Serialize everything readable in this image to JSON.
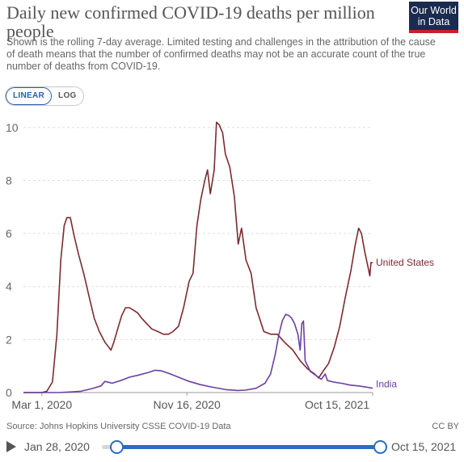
{
  "header": {
    "title": "Daily new confirmed COVID-19 deaths per million people",
    "subtitle": "Shown is the rolling 7-day average. Limited testing and challenges in the attribution of the cause of death means that the number of confirmed deaths may not be an accurate count of the true number of deaths from COVID-19.",
    "logo_line1": "Our World",
    "logo_line2": "in Data"
  },
  "scale_toggle": {
    "linear_label": "LINEAR",
    "log_label": "LOG",
    "selected": "LINEAR"
  },
  "footer": {
    "source": "Source: Johns Hopkins University CSSE COVID-19 Data",
    "license": "CC BY"
  },
  "timeline": {
    "start_label": "Jan 28, 2020",
    "end_label": "Oct 15, 2021"
  },
  "colors": {
    "united_states": "#7d2a2f",
    "india": "#6b3fa0",
    "grid": "#dddddd",
    "accent": "#2d6bc7"
  },
  "chart_data": {
    "type": "line",
    "title": "Daily new confirmed COVID-19 deaths per million people",
    "xlabel": "",
    "ylabel": "",
    "x_ticks": [
      "Mar 1, 2020",
      "Nov 16, 2020",
      "Oct 15, 2021"
    ],
    "y_ticks": [
      0,
      2,
      4,
      6,
      8,
      10
    ],
    "xlim": [
      "2020-01-28",
      "2021-10-15"
    ],
    "ylim": [
      0,
      10.3
    ],
    "grid": "horizontal dashed",
    "series": [
      {
        "name": "United States",
        "points": [
          [
            "2020-01-28",
            0
          ],
          [
            "2020-03-01",
            0
          ],
          [
            "2020-03-10",
            0.05
          ],
          [
            "2020-03-20",
            0.4
          ],
          [
            "2020-03-28",
            2.2
          ],
          [
            "2020-04-04",
            5.0
          ],
          [
            "2020-04-10",
            6.3
          ],
          [
            "2020-04-15",
            6.6
          ],
          [
            "2020-04-21",
            6.6
          ],
          [
            "2020-04-28",
            5.9
          ],
          [
            "2020-05-06",
            5.2
          ],
          [
            "2020-05-15",
            4.5
          ],
          [
            "2020-05-25",
            3.6
          ],
          [
            "2020-06-03",
            2.8
          ],
          [
            "2020-06-12",
            2.3
          ],
          [
            "2020-06-22",
            1.9
          ],
          [
            "2020-07-03",
            1.6
          ],
          [
            "2020-07-08",
            1.9
          ],
          [
            "2020-07-15",
            2.4
          ],
          [
            "2020-07-22",
            2.9
          ],
          [
            "2020-07-29",
            3.2
          ],
          [
            "2020-08-05",
            3.2
          ],
          [
            "2020-08-13",
            3.1
          ],
          [
            "2020-08-20",
            3.0
          ],
          [
            "2020-08-27",
            2.8
          ],
          [
            "2020-09-05",
            2.6
          ],
          [
            "2020-09-14",
            2.4
          ],
          [
            "2020-09-25",
            2.3
          ],
          [
            "2020-10-05",
            2.2
          ],
          [
            "2020-10-14",
            2.2
          ],
          [
            "2020-10-22",
            2.3
          ],
          [
            "2020-11-01",
            2.5
          ],
          [
            "2020-11-10",
            3.2
          ],
          [
            "2020-11-20",
            4.2
          ],
          [
            "2020-11-27",
            4.5
          ],
          [
            "2020-12-04",
            6.3
          ],
          [
            "2020-12-11",
            7.3
          ],
          [
            "2020-12-18",
            8.0
          ],
          [
            "2020-12-23",
            8.4
          ],
          [
            "2020-12-28",
            7.5
          ],
          [
            "2021-01-04",
            8.4
          ],
          [
            "2021-01-08",
            10.2
          ],
          [
            "2021-01-13",
            10.1
          ],
          [
            "2021-01-19",
            9.8
          ],
          [
            "2021-01-24",
            9.0
          ],
          [
            "2021-02-01",
            8.5
          ],
          [
            "2021-02-09",
            7.4
          ],
          [
            "2021-02-16",
            5.6
          ],
          [
            "2021-02-22",
            6.2
          ],
          [
            "2021-03-02",
            5.0
          ],
          [
            "2021-03-11",
            4.5
          ],
          [
            "2021-03-20",
            3.2
          ],
          [
            "2021-04-03",
            2.3
          ],
          [
            "2021-04-15",
            2.2
          ],
          [
            "2021-04-27",
            2.2
          ],
          [
            "2021-05-10",
            1.9
          ],
          [
            "2021-05-25",
            1.6
          ],
          [
            "2021-06-07",
            1.2
          ],
          [
            "2021-06-20",
            0.9
          ],
          [
            "2021-07-03",
            0.7
          ],
          [
            "2021-07-10",
            0.55
          ],
          [
            "2021-07-18",
            0.8
          ],
          [
            "2021-07-28",
            1.1
          ],
          [
            "2021-08-07",
            1.7
          ],
          [
            "2021-08-17",
            2.5
          ],
          [
            "2021-08-27",
            3.6
          ],
          [
            "2021-09-06",
            4.6
          ],
          [
            "2021-09-14",
            5.6
          ],
          [
            "2021-09-20",
            6.2
          ],
          [
            "2021-09-25",
            6.0
          ],
          [
            "2021-10-01",
            5.3
          ],
          [
            "2021-10-07",
            4.7
          ],
          [
            "2021-10-10",
            4.4
          ],
          [
            "2021-10-12",
            4.9
          ],
          [
            "2021-10-15",
            4.9
          ]
        ]
      },
      {
        "name": "India",
        "points": [
          [
            "2020-01-28",
            0
          ],
          [
            "2020-03-01",
            0
          ],
          [
            "2020-04-01",
            0
          ],
          [
            "2020-04-20",
            0.02
          ],
          [
            "2020-05-10",
            0.05
          ],
          [
            "2020-05-30",
            0.15
          ],
          [
            "2020-06-15",
            0.25
          ],
          [
            "2020-06-22",
            0.42
          ],
          [
            "2020-07-05",
            0.35
          ],
          [
            "2020-07-20",
            0.45
          ],
          [
            "2020-08-05",
            0.58
          ],
          [
            "2020-08-22",
            0.66
          ],
          [
            "2020-09-08",
            0.76
          ],
          [
            "2020-09-20",
            0.84
          ],
          [
            "2020-10-01",
            0.82
          ],
          [
            "2020-10-15",
            0.72
          ],
          [
            "2020-11-01",
            0.58
          ],
          [
            "2020-11-20",
            0.42
          ],
          [
            "2020-12-10",
            0.3
          ],
          [
            "2021-01-01",
            0.2
          ],
          [
            "2021-01-25",
            0.11
          ],
          [
            "2021-02-15",
            0.08
          ],
          [
            "2021-03-01",
            0.09
          ],
          [
            "2021-03-20",
            0.16
          ],
          [
            "2021-04-05",
            0.35
          ],
          [
            "2021-04-15",
            0.7
          ],
          [
            "2021-04-23",
            1.4
          ],
          [
            "2021-04-30",
            2.2
          ],
          [
            "2021-05-06",
            2.7
          ],
          [
            "2021-05-12",
            2.95
          ],
          [
            "2021-05-18",
            2.9
          ],
          [
            "2021-05-23",
            2.8
          ],
          [
            "2021-05-28",
            2.6
          ],
          [
            "2021-06-03",
            2.2
          ],
          [
            "2021-06-07",
            1.6
          ],
          [
            "2021-06-10",
            2.6
          ],
          [
            "2021-06-13",
            2.7
          ],
          [
            "2021-06-16",
            1.2
          ],
          [
            "2021-06-25",
            0.8
          ],
          [
            "2021-07-05",
            0.65
          ],
          [
            "2021-07-15",
            0.5
          ],
          [
            "2021-07-22",
            0.7
          ],
          [
            "2021-07-26",
            0.45
          ],
          [
            "2021-08-05",
            0.4
          ],
          [
            "2021-08-20",
            0.35
          ],
          [
            "2021-09-05",
            0.28
          ],
          [
            "2021-09-20",
            0.25
          ],
          [
            "2021-10-05",
            0.2
          ],
          [
            "2021-10-15",
            0.16
          ]
        ]
      }
    ]
  }
}
